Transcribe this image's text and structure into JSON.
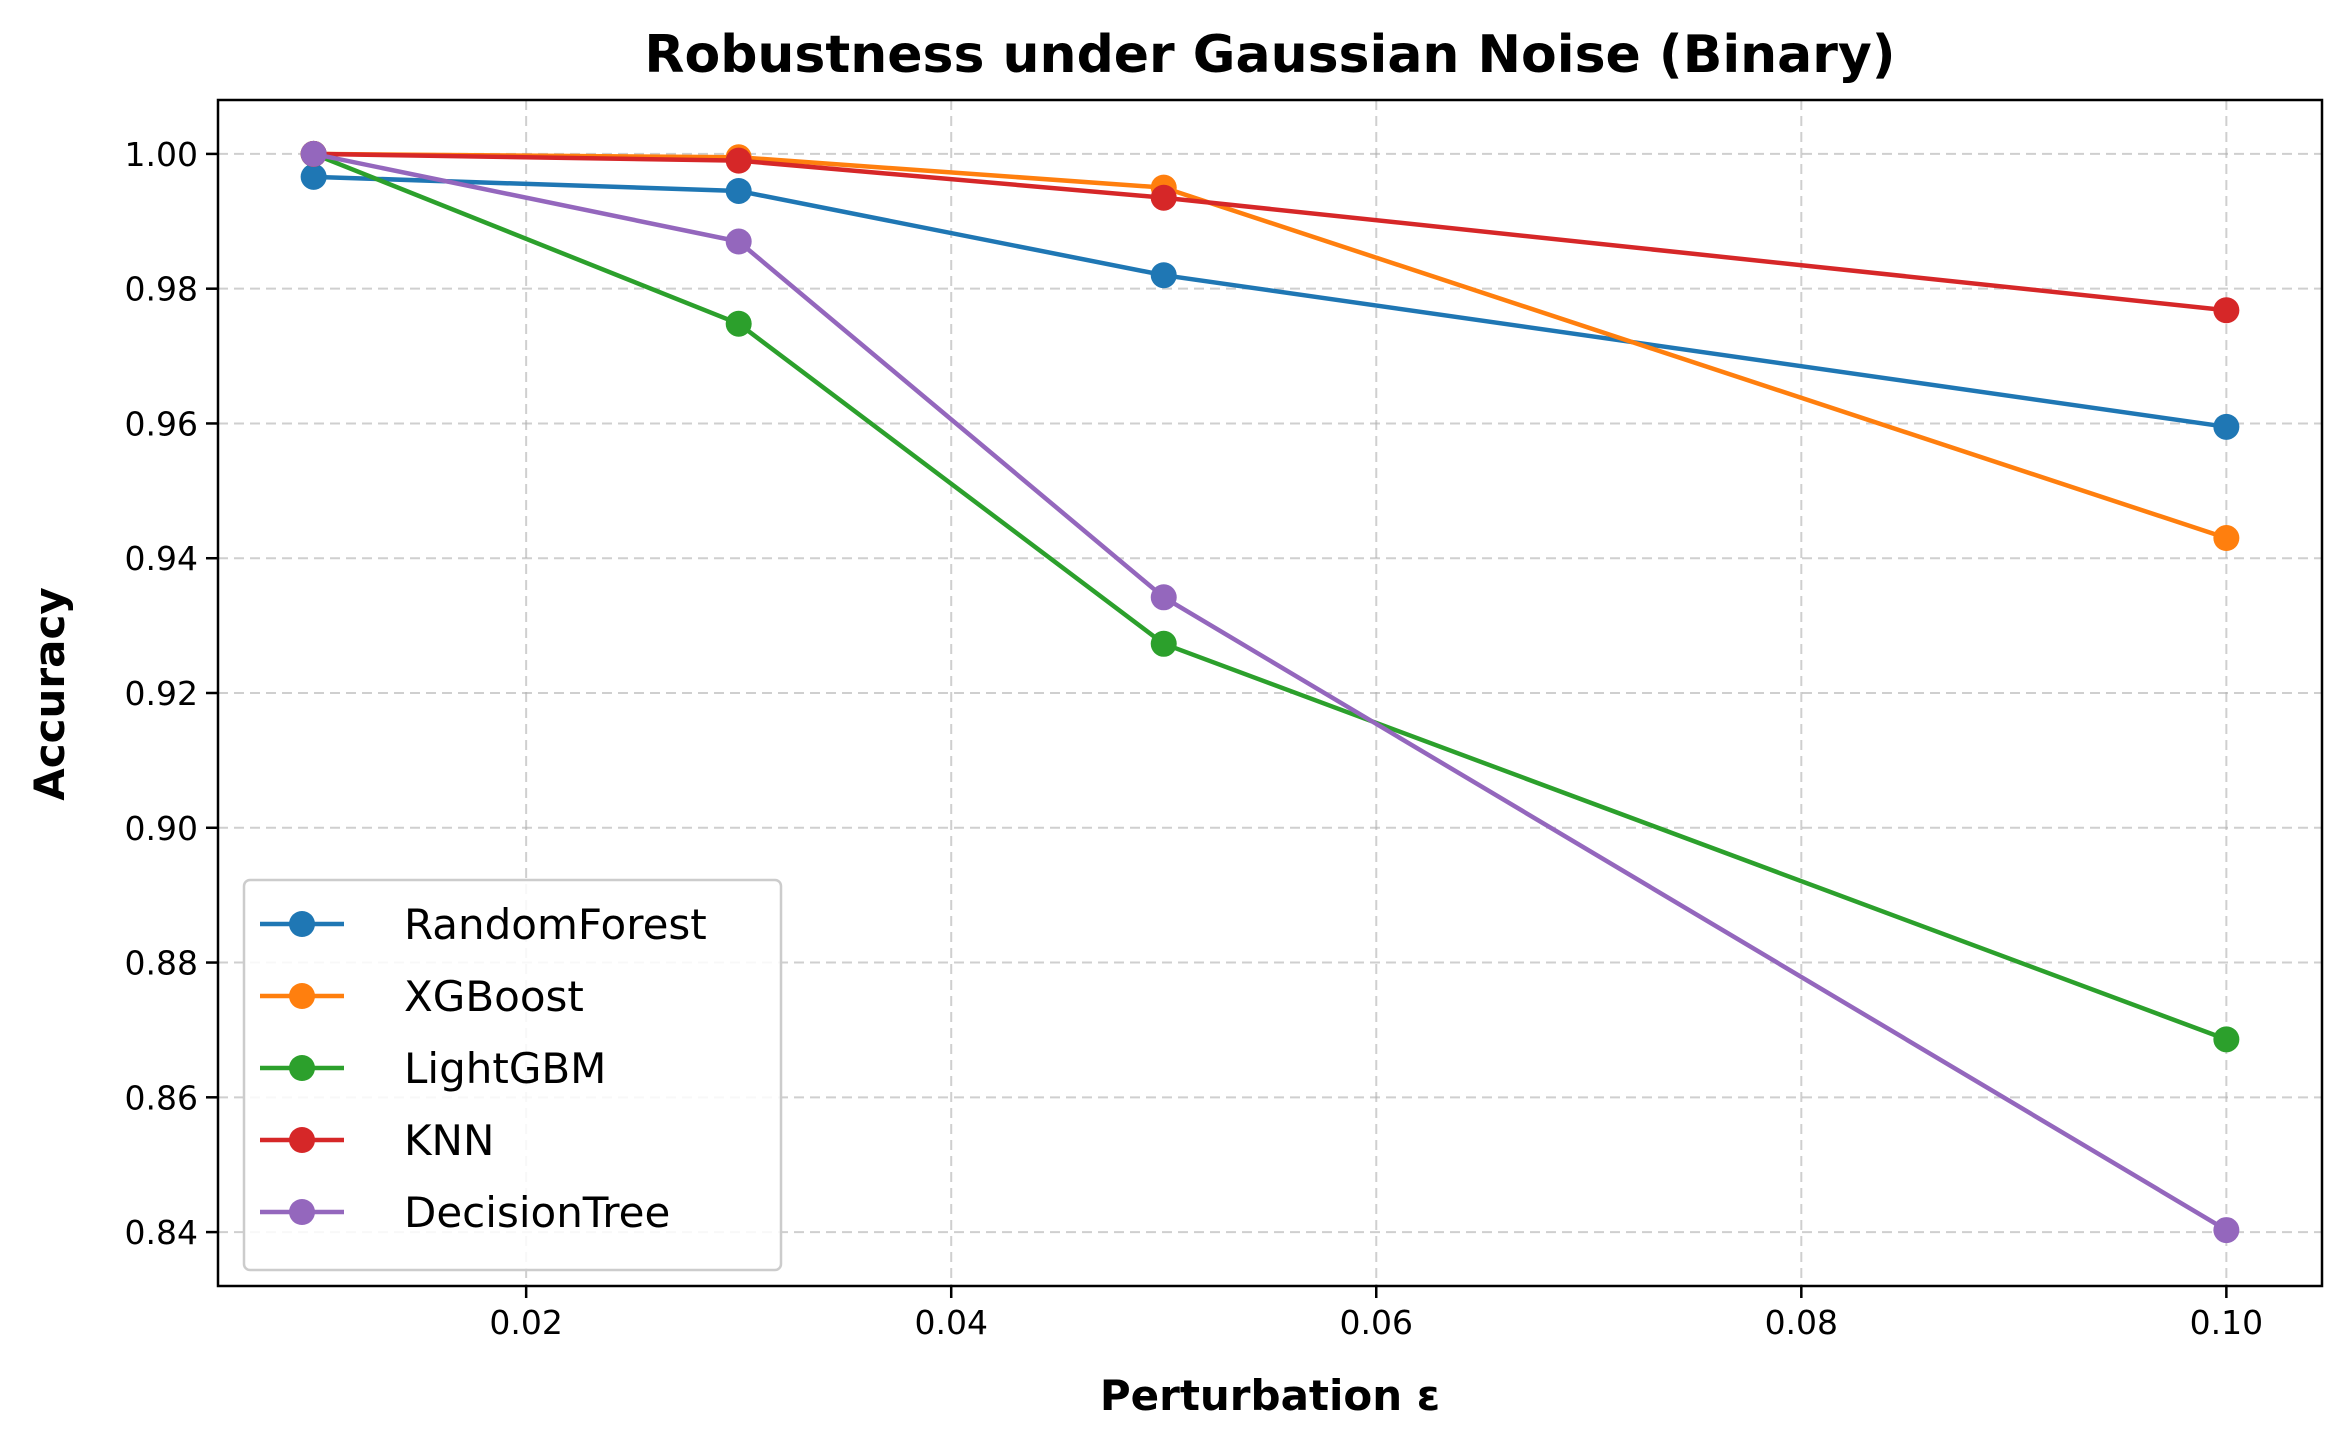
{
  "chart_data": {
    "type": "line",
    "title": "Robustness under Gaussian Noise (Binary)",
    "xlabel": "Perturbation ε",
    "ylabel": "Accuracy",
    "x": [
      0.01,
      0.03,
      0.05,
      0.1
    ],
    "xlim": [
      0.0055,
      0.1045
    ],
    "ylim": [
      0.832,
      1.008
    ],
    "xticks": [
      0.02,
      0.04,
      0.06,
      0.08,
      0.1
    ],
    "xtick_labels": [
      "0.02",
      "0.04",
      "0.06",
      "0.08",
      "0.10"
    ],
    "yticks": [
      0.84,
      0.86,
      0.88,
      0.9,
      0.92,
      0.94,
      0.96,
      0.98,
      1.0
    ],
    "ytick_labels": [
      "0.84",
      "0.86",
      "0.88",
      "0.90",
      "0.92",
      "0.94",
      "0.96",
      "0.98",
      "1.00"
    ],
    "grid": true,
    "legend_position": "lower-left",
    "series": [
      {
        "name": "RandomForest",
        "color": "#1f77b4",
        "values": [
          0.9966,
          0.9945,
          0.982,
          0.9595
        ]
      },
      {
        "name": "XGBoost",
        "color": "#ff7f0e",
        "values": [
          1.0,
          0.9995,
          0.995,
          0.943
        ]
      },
      {
        "name": "LightGBM",
        "color": "#2ca02c",
        "values": [
          1.0,
          0.9748,
          0.9273,
          0.8686
        ]
      },
      {
        "name": "KNN",
        "color": "#d62728",
        "values": [
          1.0,
          0.999,
          0.9935,
          0.9768
        ]
      },
      {
        "name": "DecisionTree",
        "color": "#9467bd",
        "values": [
          1.0,
          0.987,
          0.9342,
          0.8403
        ]
      }
    ]
  }
}
